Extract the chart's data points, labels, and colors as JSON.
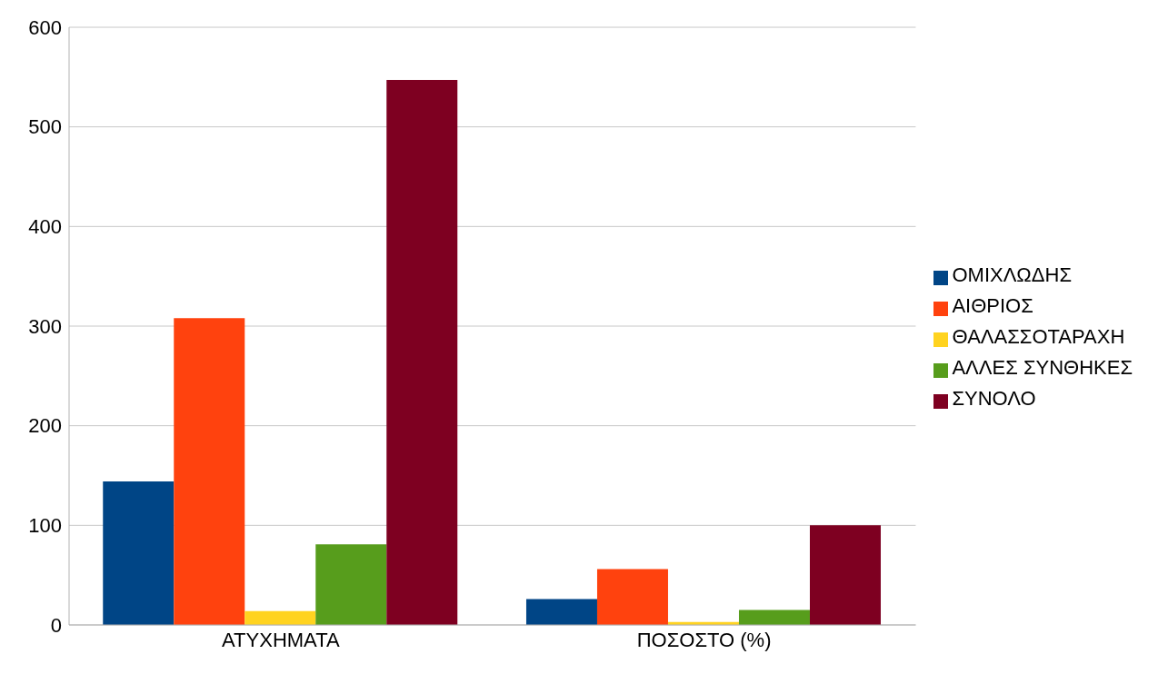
{
  "chart_data": {
    "type": "bar",
    "categories": [
      "ΑΤΥΧΗΜΑΤΑ",
      "ΠΟΣΟΣΤΟ (%)"
    ],
    "series": [
      {
        "name": "ΟΜΙΧΛΩΔΗΣ",
        "color": "#004586",
        "values": [
          144,
          26
        ]
      },
      {
        "name": "ΑΙΘΡΙΟΣ",
        "color": "#ff420e",
        "values": [
          308,
          56
        ]
      },
      {
        "name": "ΘΑΛΑΣΣΟΤΑΡΑΧΗ",
        "color": "#ffd320",
        "values": [
          14,
          3
        ]
      },
      {
        "name": "ΑΛΛΕΣ ΣΥΝΘΗΚΕΣ",
        "color": "#579d1c",
        "values": [
          81,
          15
        ]
      },
      {
        "name": "ΣΥΝΟΛΟ",
        "color": "#7e0021",
        "values": [
          547,
          100
        ]
      }
    ],
    "ylim": [
      0,
      600
    ],
    "yticks": [
      0,
      100,
      200,
      300,
      400,
      500,
      600
    ],
    "grid": "y",
    "legend": "right"
  }
}
